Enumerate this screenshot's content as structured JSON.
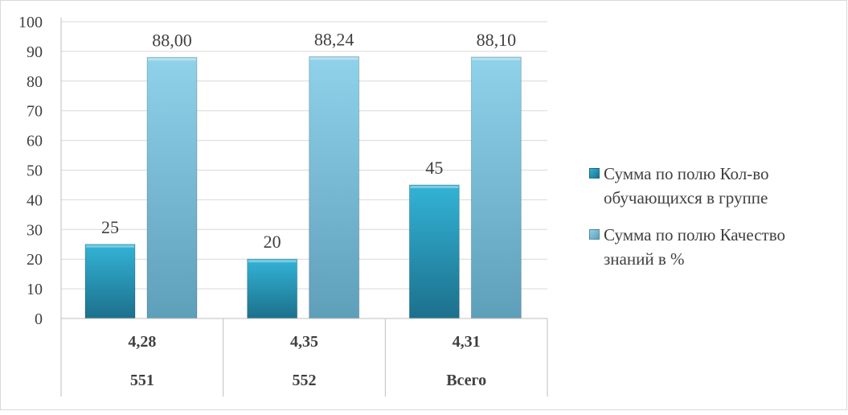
{
  "chart_data": {
    "type": "bar",
    "categories": [
      {
        "rows": [
          "4,28",
          "551"
        ]
      },
      {
        "rows": [
          "4,35",
          "552"
        ]
      },
      {
        "rows": [
          "4,31",
          "Всего"
        ]
      }
    ],
    "series": [
      {
        "name": "Сумма по полю Кол-во обучающихся в группе",
        "values": [
          25,
          20,
          45
        ],
        "labels": [
          "25",
          "20",
          "45"
        ],
        "color": "#2a9dbf"
      },
      {
        "name": "Сумма по полю Качество знаний в %",
        "values": [
          88.0,
          88.24,
          88.1
        ],
        "labels": [
          "88,00",
          "88,24",
          "88,10"
        ],
        "color": "#7fc4de"
      }
    ],
    "ylim": [
      0,
      100
    ],
    "yticks": [
      "0",
      "10",
      "20",
      "30",
      "40",
      "50",
      "60",
      "70",
      "80",
      "90",
      "100"
    ],
    "grid": true,
    "legend_position": "right"
  }
}
